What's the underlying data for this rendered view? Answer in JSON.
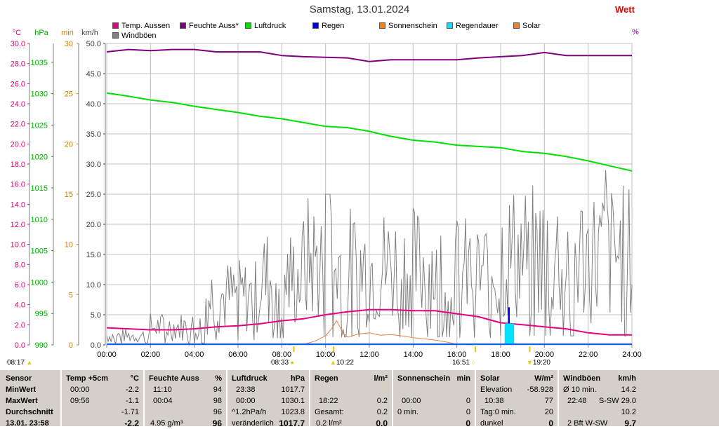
{
  "page": {
    "title": "Samstag, 13.01.2024",
    "brand": "Wett",
    "pct_unit": "%"
  },
  "colors": {
    "temp": "#e6007e",
    "feuchte": "#800080",
    "luftdruck": "#00e000",
    "regen": "#0000e0",
    "sonnenschein": "#ff8000",
    "regendauer": "#00e0ff",
    "solar": "#e88040",
    "windboeen": "#808080"
  },
  "legend": [
    {
      "label": "Temp. Aussen",
      "color": "#e6007e"
    },
    {
      "label": "Feuchte Auss*",
      "color": "#800080"
    },
    {
      "label": "Luftdruck",
      "color": "#00e000"
    },
    {
      "label": "Regen",
      "color": "#0000e0"
    },
    {
      "label": "Sonnenschein",
      "color": "#ff8000"
    },
    {
      "label": "Regendauer",
      "color": "#00e0ff"
    },
    {
      "label": "Solar",
      "color": "#e88040"
    },
    {
      "label": "Windböen",
      "color": "#808080"
    }
  ],
  "chart_data": {
    "type": "line",
    "title": "Samstag, 13.01.2024",
    "x_ticks": [
      "00:00",
      "02:00",
      "04:00",
      "06:00",
      "08:00",
      "10:00",
      "12:00",
      "14:00",
      "16:00",
      "18:00",
      "20:00",
      "22:00",
      "24:00"
    ],
    "x_range_h": [
      0,
      24
    ],
    "axes": [
      {
        "unit": "°C",
        "color": "#e6007e",
        "range": [
          0,
          30
        ],
        "ticks": [
          "0.0",
          "2.0",
          "4.0",
          "6.0",
          "8.0",
          "10.0",
          "12.0",
          "14.0",
          "16.0",
          "18.0",
          "20.0",
          "22.0",
          "24.0",
          "26.0",
          "28.0",
          "30.0"
        ]
      },
      {
        "unit": "hPa",
        "color": "#00b000",
        "range": [
          990,
          1038
        ],
        "ticks": [
          "990",
          "995",
          "1000",
          "1005",
          "1010",
          "1015",
          "1020",
          "1025",
          "1030",
          "1035"
        ]
      },
      {
        "unit": "min",
        "color": "#d08000",
        "range": [
          0,
          30
        ],
        "ticks": [
          "0",
          "5",
          "10",
          "15",
          "20",
          "25",
          "30"
        ]
      },
      {
        "unit": "km/h",
        "color": "#404040",
        "range": [
          0,
          50
        ],
        "ticks": [
          "0.0",
          "5.0",
          "10.0",
          "15.0",
          "20.0",
          "25.0",
          "30.0",
          "35.0",
          "40.0",
          "45.0",
          "50.0"
        ]
      }
    ],
    "grid": true,
    "series": [
      {
        "name": "Temp. Aussen",
        "axis": "°C",
        "points": [
          [
            0,
            1.7
          ],
          [
            1,
            1.6
          ],
          [
            2,
            1.5
          ],
          [
            3,
            1.5
          ],
          [
            4,
            1.6
          ],
          [
            5,
            1.8
          ],
          [
            6,
            1.9
          ],
          [
            7,
            2.1
          ],
          [
            8,
            2.4
          ],
          [
            9,
            2.6
          ],
          [
            10,
            3.0
          ],
          [
            11,
            3.3
          ],
          [
            12,
            3.5
          ],
          [
            13,
            3.5
          ],
          [
            14,
            3.4
          ],
          [
            15,
            3.4
          ],
          [
            16,
            3.1
          ],
          [
            17,
            2.8
          ],
          [
            18,
            2.2
          ],
          [
            19,
            2.0
          ],
          [
            20,
            1.8
          ],
          [
            21,
            1.6
          ],
          [
            22,
            1.2
          ],
          [
            23,
            1.0
          ],
          [
            24,
            1.0
          ]
        ]
      },
      {
        "name": "Feuchte Auss*",
        "axis": "km/h",
        "points": [
          [
            0,
            48.6
          ],
          [
            1,
            49.0
          ],
          [
            2,
            48.8
          ],
          [
            3,
            49.0
          ],
          [
            4,
            49.0
          ],
          [
            5,
            48.6
          ],
          [
            6,
            48.6
          ],
          [
            7,
            48.6
          ],
          [
            8,
            48.0
          ],
          [
            9,
            47.8
          ],
          [
            10,
            47.7
          ],
          [
            11,
            47.6
          ],
          [
            12,
            47.0
          ],
          [
            13,
            47.3
          ],
          [
            14,
            47.3
          ],
          [
            15,
            47.3
          ],
          [
            16,
            47.3
          ],
          [
            17,
            47.6
          ],
          [
            18,
            47.8
          ],
          [
            19,
            48.0
          ],
          [
            20,
            48.5
          ],
          [
            21,
            48.0
          ],
          [
            22,
            48.0
          ],
          [
            23,
            48.0
          ],
          [
            24,
            48.0
          ]
        ]
      },
      {
        "name": "Luftdruck",
        "axis": "hPa",
        "points": [
          [
            0,
            1030.1
          ],
          [
            1,
            1029.6
          ],
          [
            2,
            1029.0
          ],
          [
            3,
            1028.6
          ],
          [
            4,
            1028.0
          ],
          [
            5,
            1027.5
          ],
          [
            6,
            1027.0
          ],
          [
            7,
            1026.4
          ],
          [
            8,
            1026.0
          ],
          [
            9,
            1025.4
          ],
          [
            10,
            1024.8
          ],
          [
            11,
            1024.6
          ],
          [
            12,
            1024.0
          ],
          [
            13,
            1023.2
          ],
          [
            14,
            1022.6
          ],
          [
            15,
            1022.3
          ],
          [
            16,
            1021.8
          ],
          [
            17,
            1021.6
          ],
          [
            18,
            1021.4
          ],
          [
            19,
            1020.8
          ],
          [
            20,
            1020.5
          ],
          [
            21,
            1020.0
          ],
          [
            22,
            1019.3
          ],
          [
            23,
            1018.5
          ],
          [
            24,
            1017.7
          ]
        ]
      },
      {
        "name": "Solar",
        "axis": "km/h",
        "points": [
          [
            8.3,
            0
          ],
          [
            9,
            0.1
          ],
          [
            9.5,
            0.6
          ],
          [
            10,
            1.5
          ],
          [
            10.3,
            2.8
          ],
          [
            10.5,
            4.0
          ],
          [
            10.8,
            2.0
          ],
          [
            11,
            1.3
          ],
          [
            11.5,
            1.8
          ],
          [
            12,
            2.0
          ],
          [
            12.5,
            1.6
          ],
          [
            13,
            1.7
          ],
          [
            13.5,
            1.5
          ],
          [
            14,
            1.2
          ],
          [
            15,
            0.8
          ],
          [
            15.5,
            0.5
          ],
          [
            16,
            0.1
          ],
          [
            16.8,
            0
          ]
        ]
      },
      {
        "name": "Regen",
        "axis": "km/h",
        "points": [
          [
            18.35,
            0
          ],
          [
            18.35,
            6.2
          ],
          [
            18.4,
            6.2
          ],
          [
            18.4,
            0
          ]
        ]
      },
      {
        "name": "Regendauer",
        "axis": "km/h",
        "points": [
          [
            18.2,
            0
          ],
          [
            18.2,
            3.5
          ],
          [
            18.6,
            3.5
          ],
          [
            18.6,
            0
          ]
        ]
      }
    ],
    "sun_marks": [
      {
        "time": "08:17",
        "kind": "sunrise-civil"
      },
      {
        "time": "08:33",
        "kind": "sunrise"
      },
      {
        "time": "10:22",
        "kind": "max"
      },
      {
        "time": "16:51",
        "kind": "sunset"
      },
      {
        "time": "19:20",
        "kind": "moon"
      }
    ]
  },
  "stats": {
    "labels": {
      "sensor": "Sensor",
      "min": "MinWert",
      "max": "MaxWert",
      "avg": "Durchschnitt",
      "now": "13.01. 23:58"
    },
    "temp": {
      "title": "Temp +5cm",
      "unit": "°C",
      "min_time": "00:00",
      "min": "-2.2",
      "max_time": "09:56",
      "max": "-1.1",
      "avg": "-1.71",
      "now": "-2.2"
    },
    "feuchte": {
      "title": "Feuchte Auss",
      "unit": "%",
      "min_time": "11:10",
      "min": "94",
      "max_time": "00:04",
      "max": "98",
      "avg": "96",
      "now_note": "4.95 g/m³",
      "now": "96"
    },
    "luftdruck": {
      "title": "Luftdruck",
      "unit": "hPa",
      "min_time": "23:38",
      "min": "1017.7",
      "max_time": "00:00",
      "max": "1030.1",
      "avg_note": "^1.2hPa/h",
      "avg": "1023.8",
      "now_note": "veränderlich",
      "now": "1017.7"
    },
    "regen": {
      "title": "Regen",
      "unit": "l/m²",
      "max_time": "18:22",
      "max": "0.2",
      "avg_note": "Gesamt:",
      "avg": "0.2",
      "now_note": "0.2 l/m²",
      "now": "0.0"
    },
    "sonnenschein": {
      "title": "Sonnenschein",
      "unit": "min",
      "max_time": "00:00",
      "max": "0",
      "avg_note": "0 min.",
      "avg": "0",
      "now": "0"
    },
    "solar": {
      "title": "Solar",
      "unit": "W/m²",
      "min_note": "Elevation",
      "min": "-58.928",
      "max_time": "10:38",
      "max": "77",
      "avg_note": "Tag:0 min.",
      "avg": "20",
      "now_note": "dunkel",
      "now": "0"
    },
    "wind": {
      "title": "Windböen",
      "unit": "km/h",
      "min_note": "Ø 10 min.",
      "min": "14.2",
      "max_time": "22:48",
      "max": "S-SW 29.0",
      "avg": "10.2",
      "now_note": "2 Bft W-SW",
      "now": "9.7"
    }
  }
}
